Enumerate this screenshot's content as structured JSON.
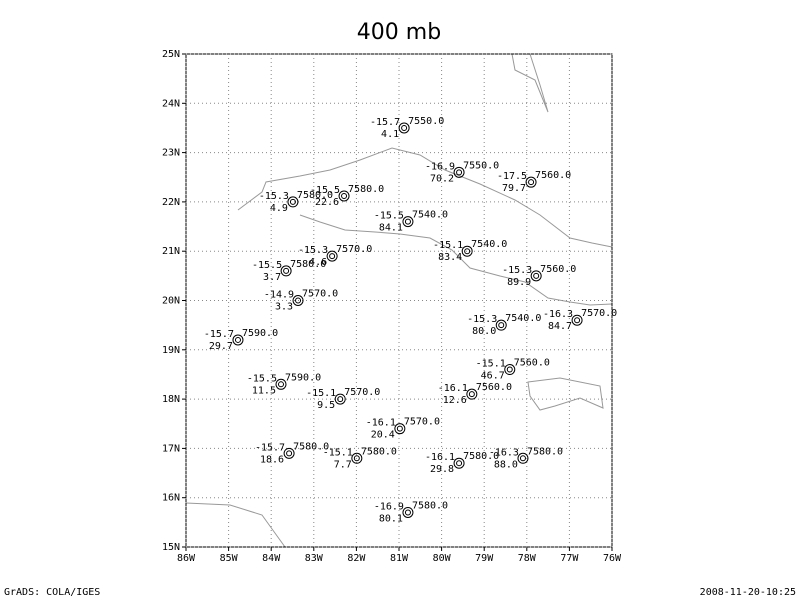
{
  "map": {
    "title": "400 mb",
    "footer_left": "GrADS: COLA/IGES",
    "footer_right": "2008-11-20-10:25",
    "xlim": [
      -86,
      -76
    ],
    "ylim": [
      15,
      25
    ],
    "xticks": [
      {
        "value": -86,
        "label": "86W"
      },
      {
        "value": -85,
        "label": "85W"
      },
      {
        "value": -84,
        "label": "84W"
      },
      {
        "value": -83,
        "label": "83W"
      },
      {
        "value": -82,
        "label": "82W"
      },
      {
        "value": -81,
        "label": "81W"
      },
      {
        "value": -80,
        "label": "80W"
      },
      {
        "value": -79,
        "label": "79W"
      },
      {
        "value": -78,
        "label": "78W"
      },
      {
        "value": -77,
        "label": "77W"
      },
      {
        "value": -76,
        "label": "76W"
      }
    ],
    "yticks": [
      {
        "value": 15,
        "label": "15N"
      },
      {
        "value": 16,
        "label": "16N"
      },
      {
        "value": 17,
        "label": "17N"
      },
      {
        "value": 18,
        "label": "18N"
      },
      {
        "value": 19,
        "label": "19N"
      },
      {
        "value": 20,
        "label": "20N"
      },
      {
        "value": 21,
        "label": "21N"
      },
      {
        "value": 22,
        "label": "22N"
      },
      {
        "value": 23,
        "label": "23N"
      },
      {
        "value": 24,
        "label": "24N"
      },
      {
        "value": 25,
        "label": "25N"
      }
    ],
    "stations": [
      {
        "lon": -80.88,
        "lat": 23.5,
        "temp": "-15.7",
        "height": "7550.0",
        "dew": "4.1"
      },
      {
        "lon": -79.59,
        "lat": 22.6,
        "temp": "-16.9",
        "height": "7550.0",
        "dew": "70.2"
      },
      {
        "lon": -77.9,
        "lat": 22.4,
        "temp": "-17.5",
        "height": "7560.0",
        "dew": "79.7"
      },
      {
        "lon": -83.49,
        "lat": 22.0,
        "temp": "-15.3",
        "height": "7580.0",
        "dew": "4.9"
      },
      {
        "lon": -82.29,
        "lat": 22.12,
        "temp": "-15.5",
        "height": "7580.0",
        "dew": "22.6"
      },
      {
        "lon": -80.79,
        "lat": 21.6,
        "temp": "-15.5",
        "height": "7540.0",
        "dew": "84.1"
      },
      {
        "lon": -79.4,
        "lat": 21.0,
        "temp": "-15.1",
        "height": "7540.0",
        "dew": "83.4"
      },
      {
        "lon": -82.57,
        "lat": 20.9,
        "temp": "-15.3",
        "height": "7570.0",
        "dew": "4.6"
      },
      {
        "lon": -83.65,
        "lat": 20.6,
        "temp": "-15.5",
        "height": "7580.0",
        "dew": "3.7"
      },
      {
        "lon": -77.78,
        "lat": 20.5,
        "temp": "-15.3",
        "height": "7560.0",
        "dew": "89.9"
      },
      {
        "lon": -83.37,
        "lat": 20.0,
        "temp": "-14.9",
        "height": "7570.0",
        "dew": "3.3"
      },
      {
        "lon": -84.78,
        "lat": 19.2,
        "temp": "-15.7",
        "height": "7590.0",
        "dew": "29.7"
      },
      {
        "lon": -78.6,
        "lat": 19.5,
        "temp": "-15.3",
        "height": "7540.0",
        "dew": "80.0"
      },
      {
        "lon": -76.82,
        "lat": 19.6,
        "temp": "-16.3",
        "height": "7570.0",
        "dew": "84.7"
      },
      {
        "lon": -83.77,
        "lat": 18.3,
        "temp": "-15.5",
        "height": "7590.0",
        "dew": "11.5"
      },
      {
        "lon": -78.4,
        "lat": 18.6,
        "temp": "-15.1",
        "height": "7560.0",
        "dew": "46.7"
      },
      {
        "lon": -79.29,
        "lat": 18.1,
        "temp": "-16.1",
        "height": "7560.0",
        "dew": "12.6"
      },
      {
        "lon": -82.38,
        "lat": 18.0,
        "temp": "-15.1",
        "height": "7570.0",
        "dew": "9.5"
      },
      {
        "lon": -80.98,
        "lat": 17.4,
        "temp": "-16.1",
        "height": "7570.0",
        "dew": "20.4"
      },
      {
        "lon": -83.58,
        "lat": 16.9,
        "temp": "-15.7",
        "height": "7580.0",
        "dew": "18.6"
      },
      {
        "lon": -81.99,
        "lat": 16.8,
        "temp": "-15.1",
        "height": "7580.0",
        "dew": "7.7"
      },
      {
        "lon": -79.59,
        "lat": 16.7,
        "temp": "-16.1",
        "height": "7580.0",
        "dew": "29.8"
      },
      {
        "lon": -78.09,
        "lat": 16.8,
        "temp": "-16.3",
        "height": "7580.0",
        "dew": "88.0"
      },
      {
        "lon": -80.79,
        "lat": 15.7,
        "temp": "-16.9",
        "height": "7580.0",
        "dew": "80.1"
      }
    ]
  }
}
